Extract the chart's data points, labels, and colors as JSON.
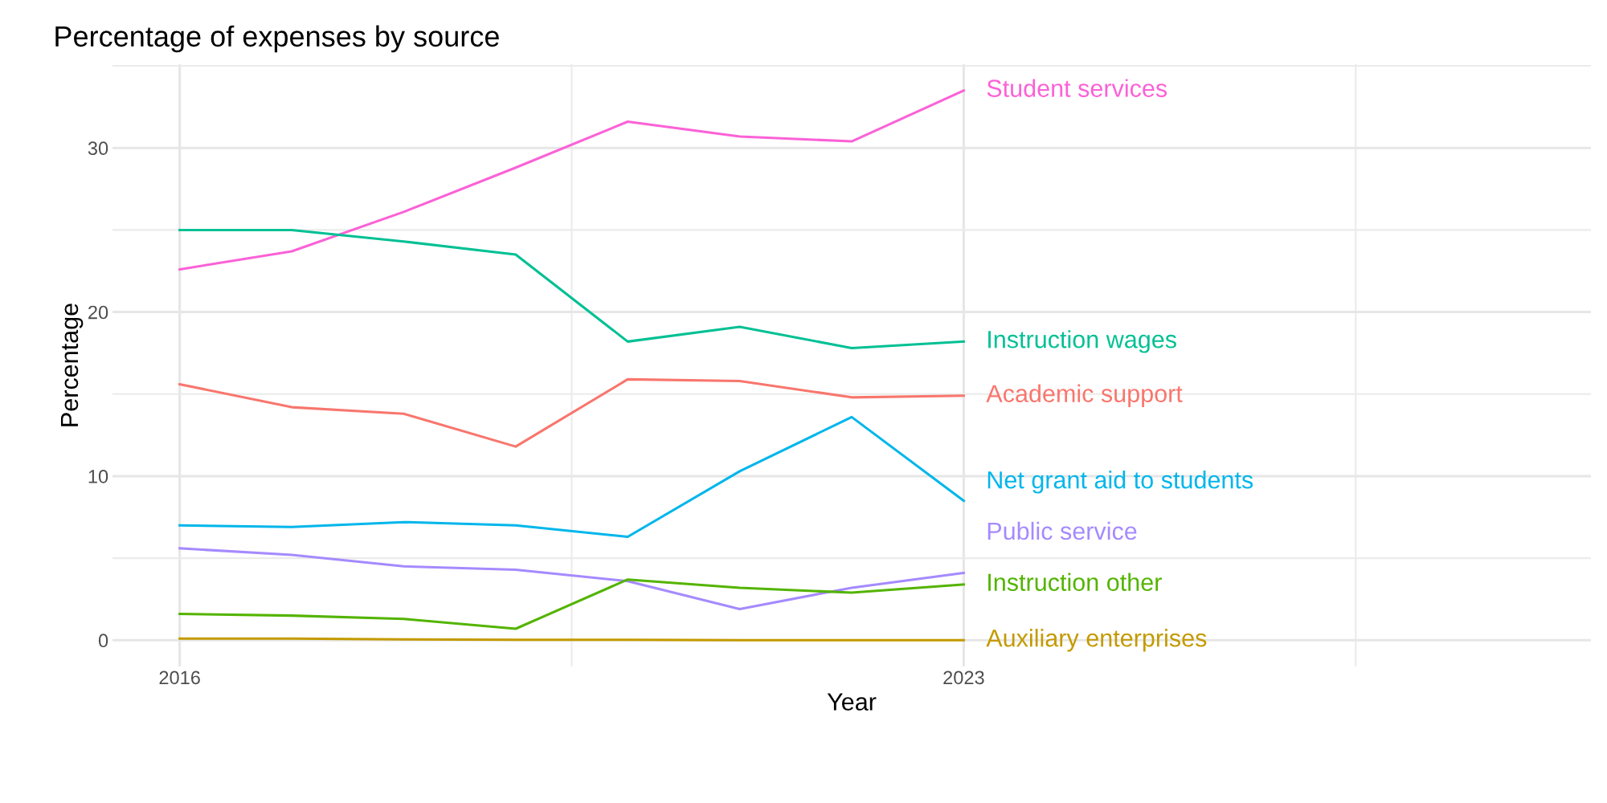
{
  "chart_data": {
    "type": "line",
    "title": "Percentage of expenses by source",
    "xlabel": "Year",
    "ylabel": "Percentage",
    "x": [
      2016,
      2017,
      2018,
      2019,
      2020,
      2021,
      2022,
      2023
    ],
    "series": [
      {
        "name": "Student services",
        "color": "#fb61d7",
        "values": [
          22.6,
          23.7,
          26.1,
          28.8,
          31.6,
          30.7,
          30.4,
          33.5
        ]
      },
      {
        "name": "Instruction wages",
        "color": "#00c094",
        "values": [
          25.0,
          25.0,
          24.3,
          23.5,
          18.2,
          19.1,
          17.8,
          18.2
        ]
      },
      {
        "name": "Academic support",
        "color": "#f8766d",
        "values": [
          15.6,
          14.2,
          13.8,
          11.8,
          15.9,
          15.8,
          14.8,
          14.9
        ]
      },
      {
        "name": "Net grant aid to students",
        "color": "#00b6eb",
        "values": [
          7.0,
          6.9,
          7.2,
          7.0,
          6.3,
          10.3,
          13.6,
          8.5
        ]
      },
      {
        "name": "Public service",
        "color": "#a58aff",
        "values": [
          5.6,
          5.2,
          4.5,
          4.3,
          3.6,
          1.9,
          3.2,
          4.1
        ]
      },
      {
        "name": "Instruction other",
        "color": "#53b400",
        "values": [
          1.6,
          1.5,
          1.3,
          0.7,
          3.7,
          3.2,
          2.9,
          3.4
        ]
      },
      {
        "name": "Auxiliary enterprises",
        "color": "#c49a00",
        "values": [
          0.1,
          0.1,
          0.05,
          0.03,
          0.03,
          0,
          0,
          0
        ]
      }
    ],
    "xlim": [
      2015.4,
      2028.6
    ],
    "xticks": [
      2016,
      2023
    ],
    "ylim": [
      -1.6,
      35.1
    ],
    "yticks": [
      0,
      10,
      20,
      30
    ],
    "grid": true,
    "legend": false
  }
}
